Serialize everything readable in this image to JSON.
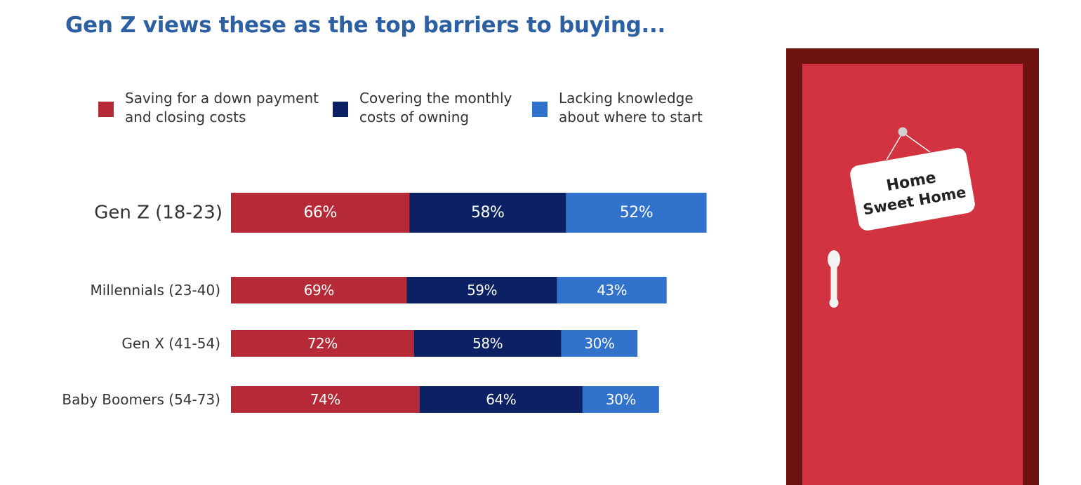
{
  "title": "Gen Z views these as the top barriers to buying...",
  "colors": {
    "title": "#2d5fa3",
    "down_payment": "#b52a36",
    "monthly_costs": "#0c2164",
    "knowledge": "#3173cc",
    "door_frame": "#6e120f",
    "door_panel": "#d13440"
  },
  "legend": [
    {
      "line1": "Saving for a down payment",
      "line2": "and closing costs"
    },
    {
      "line1": "Covering the monthly",
      "line2": "costs of owning"
    },
    {
      "line1": "Lacking knowledge",
      "line2": "about where to start"
    }
  ],
  "sign": {
    "line1": "Home",
    "line2": "Sweet Home"
  },
  "chart_data": {
    "type": "bar",
    "orientation": "horizontal",
    "stacked": true,
    "title": "Gen Z views these as the top barriers to buying...",
    "categories": [
      "Gen Z (18-23)",
      "Millennials (23-40)",
      "Gen X (41-54)",
      "Baby Boomers (54-73)"
    ],
    "series": [
      {
        "name": "Saving for a down payment and closing costs",
        "values": [
          66,
          69,
          72,
          74
        ],
        "color": "#b52a36"
      },
      {
        "name": "Covering the monthly costs of owning",
        "values": [
          58,
          59,
          58,
          64
        ],
        "color": "#0c2164"
      },
      {
        "name": "Lacking knowledge about where to start",
        "values": [
          52,
          43,
          30,
          30
        ],
        "color": "#3173cc"
      }
    ],
    "value_suffix": "%",
    "legend_position": "top",
    "grid": false
  }
}
